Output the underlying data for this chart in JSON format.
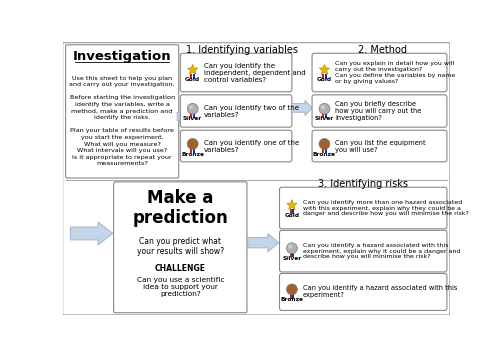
{
  "investigation_title": "Investigation",
  "investigation_text": "Use this sheet to help you plan\nand carry out your investigation.\n\nBefore starting the investigation\nidentify the variables, write a\nmethod, make a prediction and\nidentify the risks.\n\nPlan your table of results before\nyou start the experiment.\nWhat will you measure?\nWhat intervals will you use?\nIs it appropriate to repeat your\nmeasurements?",
  "section1_title": "1. Identifying variables",
  "section2_title": "2. Method",
  "section3_title": "3. Identifying risks",
  "prediction_title": "Make a\nprediction",
  "prediction_text": "Can you predict what\nyour results will show?",
  "challenge_label": "CHALLENGE",
  "challenge_text": "Can you use a scientific\nidea to support your\nprediction?",
  "arrow_color": "#c5d5e8",
  "arrow_edge": "#9aafc8",
  "box_edge": "#888888",
  "var_gold": "Can you identify the\nindependent, dependent and\ncontrol variables?",
  "var_silver": "Can you identify two of the\nvariables?",
  "var_bronze": "Can you identify one of the\nvariables?",
  "method_gold": "Can you explain in detail how you will\ncarry out the investigation?\nCan you define the variables by name\nor by giving values?",
  "method_silver": "Can you briefly describe\nhow you will carry out the\ninvestigation?",
  "method_bronze": "Can you list the equipment\nyou will use?",
  "risk_gold": "Can you identify more than one hazard associated\nwith this experiment, explain why they could be a\ndanger and describe how you will minimise the risk?",
  "risk_silver": "Can you identify a hazard associated with this\nexperiment, explain why it could be a danger and\ndescribe how you will minimise the risk?",
  "risk_bronze": "Can you identify a hazard associated with this\nexperiment?"
}
